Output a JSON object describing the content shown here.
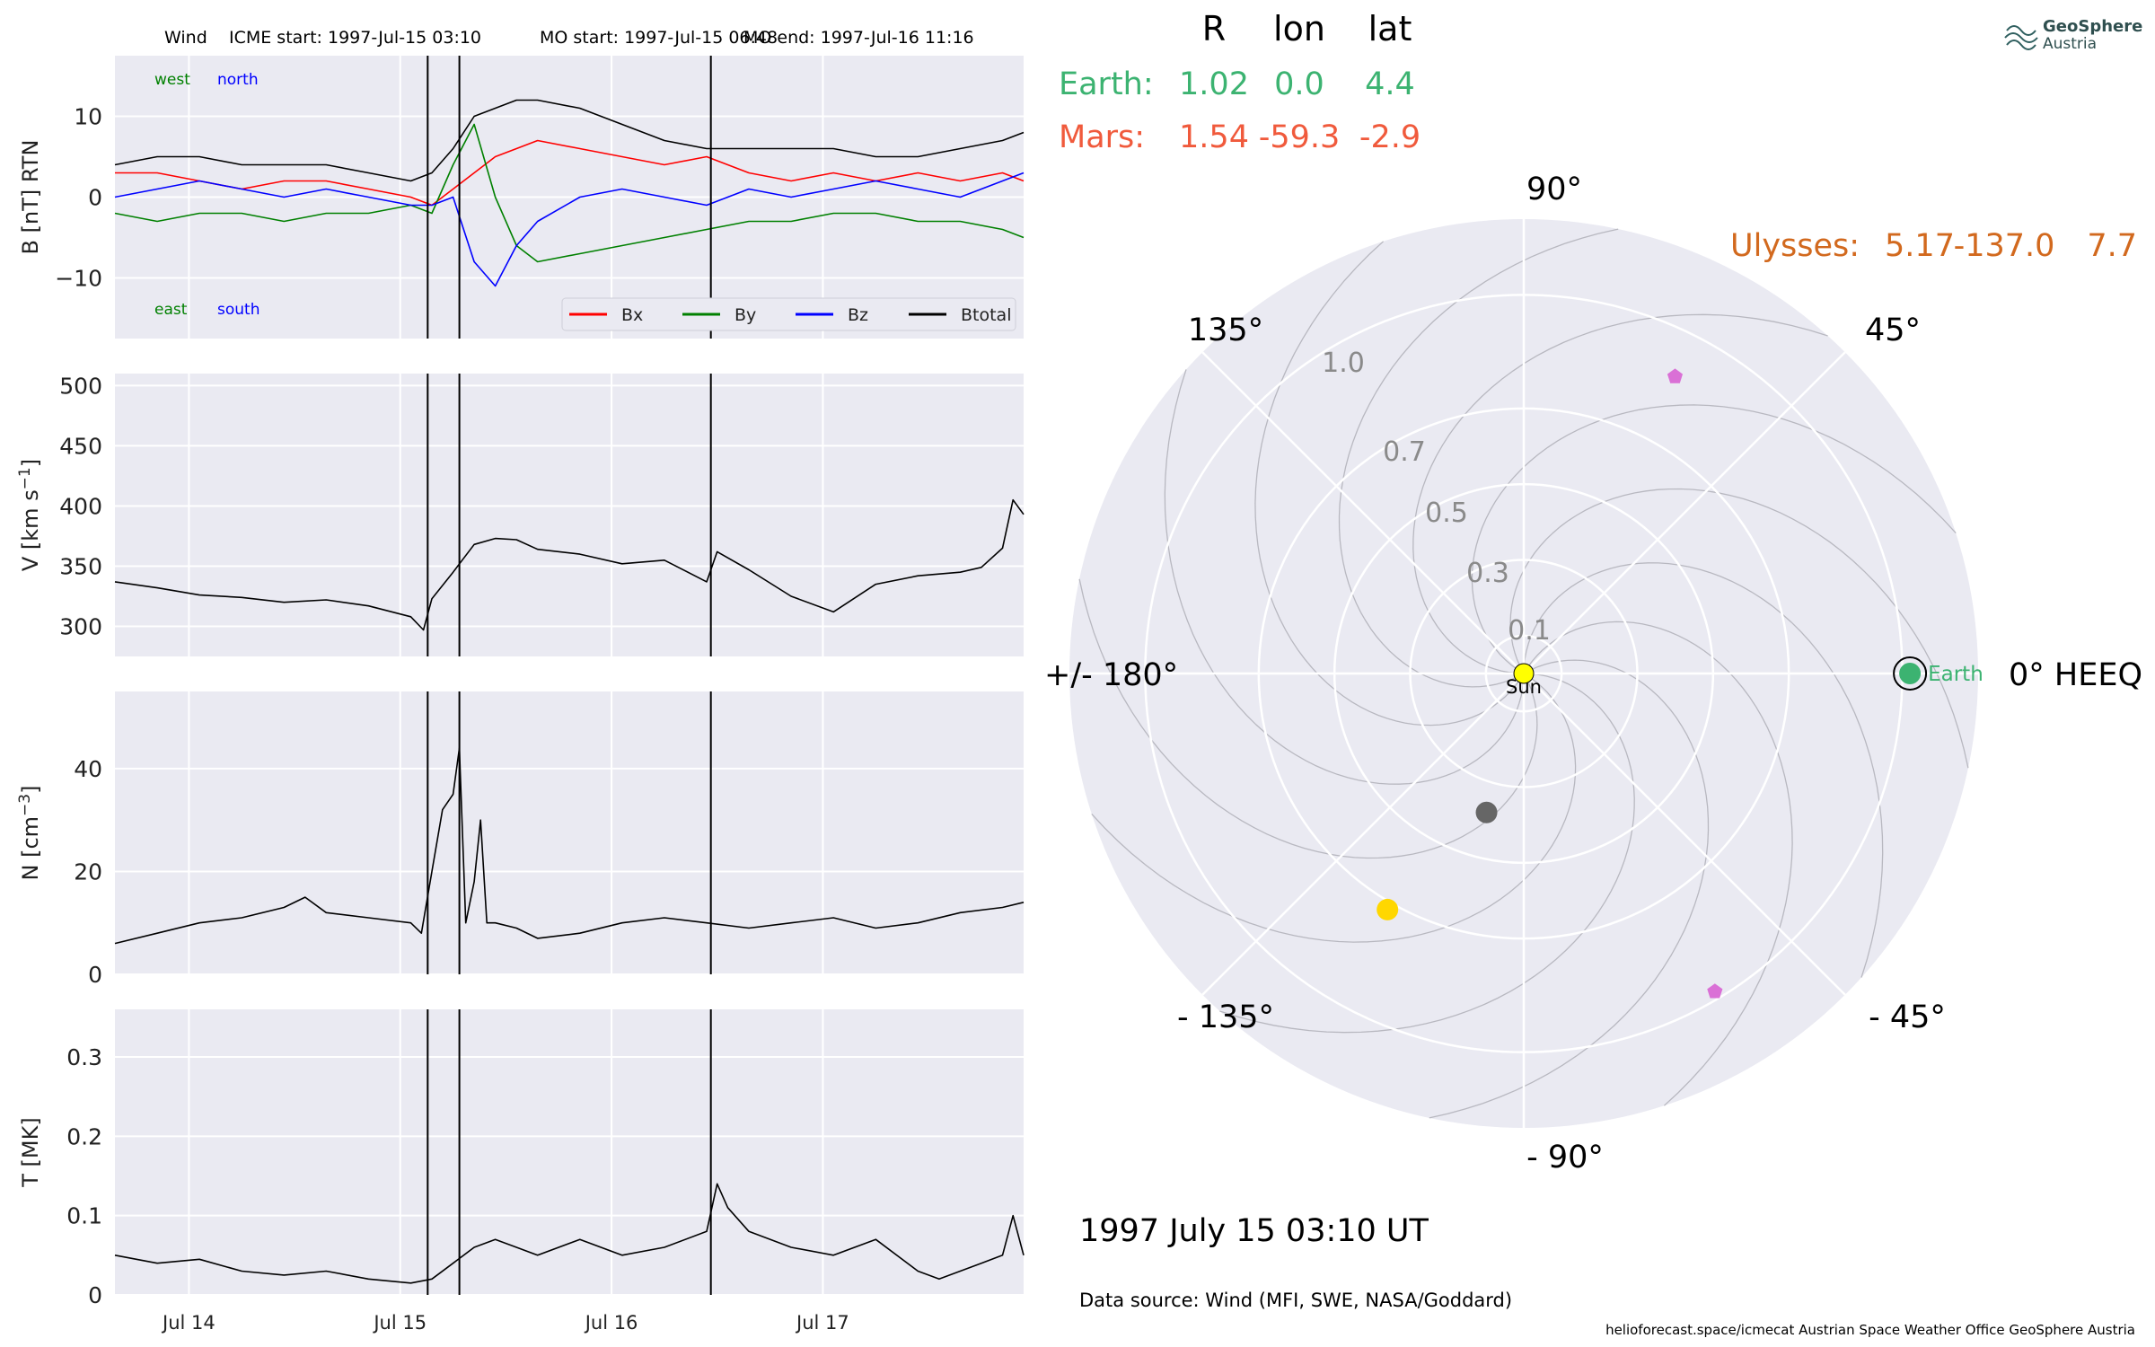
{
  "header": {
    "spacecraft": "Wind",
    "icme_start": "ICME start: 1997-Jul-15 03:10",
    "mo_start": "MO start: 1997-Jul-15 06:48",
    "mo_end": "MO end: 1997-Jul-16 11:16"
  },
  "logo": {
    "line1": "GeoSphere",
    "line2": "Austria"
  },
  "positions_table": {
    "columns": [
      "R",
      "lon",
      "lat"
    ],
    "rows": [
      {
        "name": "Earth:",
        "R": "1.02",
        "lon": "0.0",
        "lat": "4.4",
        "color": "#3cb371"
      },
      {
        "name": "Mars:",
        "R": "1.54",
        "lon": "-59.3",
        "lat": "-2.9",
        "color": "#f05a3c"
      },
      {
        "name": "Ulysses:",
        "R": "5.17",
        "lon": "-137.0",
        "lat": "7.7",
        "color": "#d2691e"
      }
    ]
  },
  "date_label": "1997 July 15  03:10 UT",
  "data_source": "Data source: Wind (MFI, SWE, NASA/Goddard)",
  "footer": "helioforecast.space/icmecat   Austrian Space Weather Office   GeoSphere Austria",
  "chart_data": [
    {
      "type": "line",
      "ylabel": "B [nT] RTN",
      "yticks": [
        -10,
        0,
        10
      ],
      "ylim": [
        -17.5,
        17.5
      ],
      "xlim": [
        0,
        4.3
      ],
      "xticks": [
        0.35,
        1.35,
        2.35,
        3.35
      ],
      "xticklabels": [
        "Jul 14",
        "Jul 15",
        "Jul 16",
        "Jul 17"
      ],
      "grid": true,
      "legend_position": "lower-right",
      "annotations": [
        {
          "text": "west",
          "color": "#008000"
        },
        {
          "text": "north",
          "color": "#0000ff"
        },
        {
          "text": "east",
          "color": "#008000"
        },
        {
          "text": "south",
          "color": "#0000ff"
        }
      ],
      "vlines": [
        1.48,
        1.63,
        2.82
      ],
      "series": [
        {
          "name": "Bx",
          "color": "#ff0000",
          "x": [
            0,
            0.2,
            0.4,
            0.6,
            0.8,
            1.0,
            1.2,
            1.4,
            1.5,
            1.6,
            1.7,
            1.8,
            1.9,
            2.0,
            2.2,
            2.4,
            2.6,
            2.8,
            3.0,
            3.2,
            3.4,
            3.6,
            3.8,
            4.0,
            4.2,
            4.3
          ],
          "values": [
            3,
            3,
            2,
            1,
            2,
            2,
            1,
            0,
            -1,
            1,
            3,
            5,
            6,
            7,
            6,
            5,
            4,
            5,
            3,
            2,
            3,
            2,
            3,
            2,
            3,
            2
          ]
        },
        {
          "name": "By",
          "color": "#008000",
          "x": [
            0,
            0.2,
            0.4,
            0.6,
            0.8,
            1.0,
            1.2,
            1.4,
            1.5,
            1.6,
            1.7,
            1.8,
            1.9,
            2.0,
            2.2,
            2.4,
            2.6,
            2.8,
            3.0,
            3.2,
            3.4,
            3.6,
            3.8,
            4.0,
            4.2,
            4.3
          ],
          "values": [
            -2,
            -3,
            -2,
            -2,
            -3,
            -2,
            -2,
            -1,
            -2,
            4,
            9,
            0,
            -6,
            -8,
            -7,
            -6,
            -5,
            -4,
            -3,
            -3,
            -2,
            -2,
            -3,
            -3,
            -4,
            -5
          ]
        },
        {
          "name": "Bz",
          "color": "#0000ff",
          "x": [
            0,
            0.2,
            0.4,
            0.6,
            0.8,
            1.0,
            1.2,
            1.4,
            1.5,
            1.6,
            1.7,
            1.8,
            1.9,
            2.0,
            2.2,
            2.4,
            2.6,
            2.8,
            3.0,
            3.2,
            3.4,
            3.6,
            3.8,
            4.0,
            4.2,
            4.3
          ],
          "values": [
            0,
            1,
            2,
            1,
            0,
            1,
            0,
            -1,
            -1,
            0,
            -8,
            -11,
            -6,
            -3,
            0,
            1,
            0,
            -1,
            1,
            0,
            1,
            2,
            1,
            0,
            2,
            3
          ]
        },
        {
          "name": "Btotal",
          "color": "#000000",
          "x": [
            0,
            0.2,
            0.4,
            0.6,
            0.8,
            1.0,
            1.2,
            1.4,
            1.5,
            1.6,
            1.7,
            1.8,
            1.9,
            2.0,
            2.2,
            2.4,
            2.6,
            2.8,
            3.0,
            3.2,
            3.4,
            3.6,
            3.8,
            4.0,
            4.2,
            4.3
          ],
          "values": [
            4,
            5,
            5,
            4,
            4,
            4,
            3,
            2,
            3,
            6,
            10,
            11,
            12,
            12,
            11,
            9,
            7,
            6,
            6,
            6,
            6,
            5,
            5,
            6,
            7,
            8
          ]
        }
      ]
    },
    {
      "type": "line",
      "ylabel": "V [km s^-1]",
      "yticks": [
        300,
        350,
        400,
        450,
        500
      ],
      "ylim": [
        275,
        510
      ],
      "xlim": [
        0,
        4.3
      ],
      "xticks": [
        0.35,
        1.35,
        2.35,
        3.35
      ],
      "xticklabels": [
        "Jul 14",
        "Jul 15",
        "Jul 16",
        "Jul 17"
      ],
      "grid": true,
      "vlines": [
        1.48,
        1.63,
        2.82
      ],
      "series": [
        {
          "color": "#000000",
          "x": [
            0,
            0.2,
            0.4,
            0.6,
            0.8,
            1.0,
            1.2,
            1.4,
            1.46,
            1.5,
            1.6,
            1.7,
            1.8,
            1.9,
            2.0,
            2.2,
            2.4,
            2.6,
            2.8,
            2.85,
            3.0,
            3.2,
            3.4,
            3.6,
            3.8,
            4.0,
            4.1,
            4.2,
            4.25,
            4.3
          ],
          "values": [
            337,
            332,
            326,
            324,
            320,
            322,
            317,
            308,
            297,
            323,
            345,
            368,
            373,
            372,
            364,
            360,
            352,
            355,
            337,
            362,
            347,
            325,
            312,
            335,
            342,
            345,
            349,
            365,
            405,
            393
          ]
        }
      ]
    },
    {
      "type": "line",
      "ylabel": "N [cm^-3]",
      "yticks": [
        0,
        20,
        40
      ],
      "ylim": [
        0,
        55
      ],
      "xlim": [
        0,
        4.3
      ],
      "xticks": [
        0.35,
        1.35,
        2.35,
        3.35
      ],
      "xticklabels": [
        "Jul 14",
        "Jul 15",
        "Jul 16",
        "Jul 17"
      ],
      "grid": true,
      "vlines": [
        1.48,
        1.63,
        2.82
      ],
      "series": [
        {
          "color": "#000000",
          "x": [
            0,
            0.2,
            0.4,
            0.6,
            0.8,
            0.9,
            1.0,
            1.2,
            1.4,
            1.45,
            1.5,
            1.55,
            1.6,
            1.63,
            1.66,
            1.7,
            1.73,
            1.76,
            1.8,
            1.9,
            2.0,
            2.2,
            2.4,
            2.6,
            2.8,
            3.0,
            3.2,
            3.4,
            3.6,
            3.8,
            4.0,
            4.2,
            4.3
          ],
          "values": [
            6,
            8,
            10,
            11,
            13,
            15,
            12,
            11,
            10,
            8,
            20,
            32,
            35,
            44,
            10,
            18,
            30,
            10,
            10,
            9,
            7,
            8,
            10,
            11,
            10,
            9,
            10,
            11,
            9,
            10,
            12,
            13,
            14
          ]
        }
      ]
    },
    {
      "type": "line",
      "ylabel": "T [MK]",
      "yticks": [
        0.0,
        0.1,
        0.2,
        0.3
      ],
      "ylim": [
        0,
        0.36
      ],
      "xlim": [
        0,
        4.3
      ],
      "xticks": [
        0.35,
        1.35,
        2.35,
        3.35
      ],
      "xticklabels": [
        "Jul 14",
        "Jul 15",
        "Jul 16",
        "Jul 17"
      ],
      "grid": true,
      "vlines": [
        1.48,
        1.63,
        2.82
      ],
      "series": [
        {
          "color": "#000000",
          "x": [
            0,
            0.2,
            0.4,
            0.6,
            0.8,
            1.0,
            1.2,
            1.4,
            1.5,
            1.6,
            1.7,
            1.8,
            1.9,
            2.0,
            2.2,
            2.4,
            2.6,
            2.8,
            2.85,
            2.9,
            3.0,
            3.2,
            3.4,
            3.6,
            3.8,
            3.9,
            4.0,
            4.1,
            4.2,
            4.25,
            4.3
          ],
          "values": [
            0.05,
            0.04,
            0.045,
            0.03,
            0.025,
            0.03,
            0.02,
            0.015,
            0.02,
            0.04,
            0.06,
            0.07,
            0.06,
            0.05,
            0.07,
            0.05,
            0.06,
            0.08,
            0.14,
            0.11,
            0.08,
            0.06,
            0.05,
            0.07,
            0.03,
            0.02,
            0.03,
            0.04,
            0.05,
            0.1,
            0.05
          ]
        }
      ]
    },
    {
      "type": "scatter",
      "coordinate_system": "polar",
      "angle_labels": [
        "0° HEEQ",
        "45°",
        "90°",
        "135°",
        "+/- 180°",
        "- 135°",
        "- 90°",
        "- 45°"
      ],
      "radial_ticks": [
        "0.1",
        "0.3",
        "0.5",
        "0.7",
        "1.0"
      ],
      "radial_max": 1.2,
      "grid": true,
      "points": [
        {
          "label": "Sun",
          "r": 0.0,
          "lon": 0,
          "color": "#ffff00"
        },
        {
          "label": "Earth",
          "r": 1.02,
          "lon": 0.0,
          "color": "#3cb371"
        },
        {
          "r": 0.38,
          "lon": -105,
          "color": "#666666"
        },
        {
          "r": 0.72,
          "lon": -120,
          "color": "#ffd700"
        },
        {
          "r": 0.88,
          "lon": 63,
          "color": "#da70d6",
          "marker": "pentagon"
        },
        {
          "r": 0.98,
          "lon": -59,
          "color": "#da70d6",
          "marker": "pentagon"
        }
      ]
    }
  ]
}
